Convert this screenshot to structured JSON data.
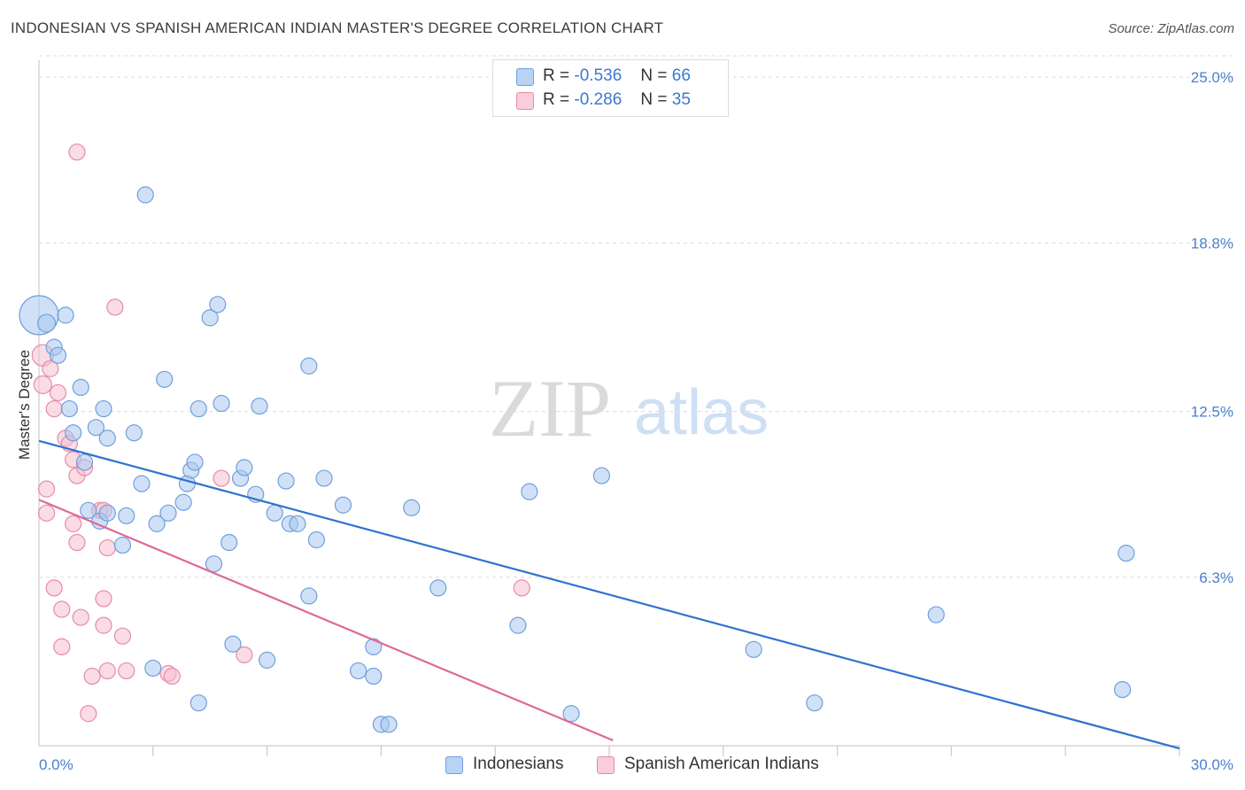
{
  "title": "INDONESIAN VS SPANISH AMERICAN INDIAN MASTER'S DEGREE CORRELATION CHART",
  "source": "Source: ZipAtlas.com",
  "watermark": {
    "zip": "ZIP",
    "atlas": "atlas"
  },
  "legend": {
    "rows": [
      {
        "r_label": "R =",
        "r_value": "-0.536",
        "n_label": "N =",
        "n_value": "66"
      },
      {
        "r_label": "R =",
        "r_value": "-0.286",
        "n_label": "N =",
        "n_value": "35"
      }
    ]
  },
  "bottom_legend": {
    "series1": "Indonesians",
    "series2": "Spanish American Indians"
  },
  "colors": {
    "blue_fill": "#a9c8f0",
    "blue_stroke": "#6f9fdc",
    "blue_line": "#2f72cf",
    "pink_fill": "#f6bfd0",
    "pink_stroke": "#e88aa8",
    "pink_line": "#e0679a",
    "tick_text": "#4a7fd0",
    "grid": "#dcdcdc"
  },
  "chart_data": {
    "type": "scatter",
    "title": "INDONESIAN VS SPANISH AMERICAN INDIAN MASTER'S DEGREE CORRELATION CHART",
    "xlabel": "",
    "ylabel": "Master's Degree",
    "xlim": [
      0,
      30
    ],
    "ylim": [
      0,
      25.8
    ],
    "x_tick_labels": [
      "0.0%",
      "30.0%"
    ],
    "y_ticks": [
      6.3,
      12.5,
      18.8,
      25.0
    ],
    "y_tick_labels": [
      "6.3%",
      "12.5%",
      "18.8%",
      "25.0%"
    ],
    "grid": true,
    "series": [
      {
        "name": "Indonesians",
        "color": "#a9c8f0",
        "r": -0.536,
        "n": 66,
        "trend": {
          "x": [
            0,
            30
          ],
          "y": [
            11.4,
            -0.1
          ]
        },
        "points": [
          [
            0.0,
            16.1,
            22
          ],
          [
            0.2,
            15.8,
            10
          ],
          [
            0.7,
            16.1,
            9
          ],
          [
            0.4,
            14.9,
            9
          ],
          [
            0.5,
            14.6,
            9
          ],
          [
            1.1,
            13.4,
            9
          ],
          [
            0.8,
            12.6,
            9
          ],
          [
            0.9,
            11.7,
            9
          ],
          [
            1.2,
            10.6,
            9
          ],
          [
            1.5,
            11.9,
            9
          ],
          [
            1.7,
            12.6,
            9
          ],
          [
            1.8,
            11.5,
            9
          ],
          [
            2.5,
            11.7,
            9
          ],
          [
            2.8,
            20.6,
            9
          ],
          [
            3.3,
            13.7,
            9
          ],
          [
            4.2,
            12.6,
            9
          ],
          [
            4.5,
            16.0,
            9
          ],
          [
            4.7,
            16.5,
            9
          ],
          [
            4.8,
            12.8,
            9
          ],
          [
            5.8,
            12.7,
            9
          ],
          [
            7.1,
            14.2,
            9
          ],
          [
            1.3,
            8.8,
            9
          ],
          [
            1.6,
            8.4,
            9
          ],
          [
            1.8,
            8.7,
            9
          ],
          [
            2.3,
            8.6,
            9
          ],
          [
            2.2,
            7.5,
            9
          ],
          [
            2.7,
            9.8,
            9
          ],
          [
            3.1,
            8.3,
            9
          ],
          [
            3.4,
            8.7,
            9
          ],
          [
            3.8,
            9.1,
            9
          ],
          [
            3.9,
            9.8,
            9
          ],
          [
            4.0,
            10.3,
            9
          ],
          [
            4.1,
            10.6,
            9
          ],
          [
            5.0,
            7.6,
            9
          ],
          [
            5.3,
            10.0,
            9
          ],
          [
            5.4,
            10.4,
            9
          ],
          [
            5.7,
            9.4,
            9
          ],
          [
            6.2,
            8.7,
            9
          ],
          [
            6.5,
            9.9,
            9
          ],
          [
            6.6,
            8.3,
            9
          ],
          [
            6.8,
            8.3,
            9
          ],
          [
            7.3,
            7.7,
            9
          ],
          [
            7.5,
            10.0,
            9
          ],
          [
            8.0,
            9.0,
            9
          ],
          [
            9.8,
            8.9,
            9
          ],
          [
            12.9,
            9.5,
            9
          ],
          [
            14.8,
            10.1,
            9
          ],
          [
            4.6,
            6.8,
            9
          ],
          [
            7.1,
            5.6,
            9
          ],
          [
            10.5,
            5.9,
            9
          ],
          [
            12.6,
            4.5,
            9
          ],
          [
            8.8,
            3.7,
            9
          ],
          [
            5.1,
            3.8,
            9
          ],
          [
            6.0,
            3.2,
            9
          ],
          [
            3.0,
            2.9,
            9
          ],
          [
            8.4,
            2.8,
            9
          ],
          [
            8.8,
            2.6,
            9
          ],
          [
            4.2,
            1.6,
            9
          ],
          [
            9.0,
            0.8,
            9
          ],
          [
            9.2,
            0.8,
            9
          ],
          [
            14.0,
            1.2,
            9
          ],
          [
            18.8,
            3.6,
            9
          ],
          [
            20.4,
            1.6,
            9
          ],
          [
            23.6,
            4.9,
            9
          ],
          [
            28.6,
            7.2,
            9
          ],
          [
            28.5,
            2.1,
            9
          ]
        ]
      },
      {
        "name": "Spanish American Indians",
        "color": "#f6bfd0",
        "r": -0.286,
        "n": 35,
        "trend": {
          "x": [
            0,
            15.1
          ],
          "y": [
            9.2,
            0.2
          ]
        },
        "points": [
          [
            0.1,
            14.6,
            12
          ],
          [
            0.1,
            13.5,
            10
          ],
          [
            0.3,
            14.1,
            9
          ],
          [
            0.5,
            13.2,
            9
          ],
          [
            0.4,
            12.6,
            9
          ],
          [
            1.0,
            22.2,
            9
          ],
          [
            2.0,
            16.4,
            9
          ],
          [
            0.7,
            11.5,
            9
          ],
          [
            0.8,
            11.3,
            9
          ],
          [
            0.9,
            10.7,
            9
          ],
          [
            1.0,
            10.1,
            9
          ],
          [
            1.2,
            10.4,
            9
          ],
          [
            0.2,
            9.6,
            9
          ],
          [
            0.2,
            8.7,
            9
          ],
          [
            0.9,
            8.3,
            9
          ],
          [
            1.0,
            7.6,
            9
          ],
          [
            1.6,
            8.8,
            9
          ],
          [
            1.7,
            8.8,
            9
          ],
          [
            1.8,
            7.4,
            9
          ],
          [
            4.8,
            10.0,
            9
          ],
          [
            0.4,
            5.9,
            9
          ],
          [
            0.6,
            5.1,
            9
          ],
          [
            1.1,
            4.8,
            9
          ],
          [
            1.7,
            5.5,
            9
          ],
          [
            1.7,
            4.5,
            9
          ],
          [
            2.2,
            4.1,
            9
          ],
          [
            0.6,
            3.7,
            9
          ],
          [
            1.4,
            2.6,
            9
          ],
          [
            1.8,
            2.8,
            9
          ],
          [
            2.3,
            2.8,
            9
          ],
          [
            3.4,
            2.7,
            9
          ],
          [
            3.5,
            2.6,
            9
          ],
          [
            5.4,
            3.4,
            9
          ],
          [
            12.7,
            5.9,
            9
          ],
          [
            1.3,
            1.2,
            9
          ]
        ]
      }
    ]
  }
}
